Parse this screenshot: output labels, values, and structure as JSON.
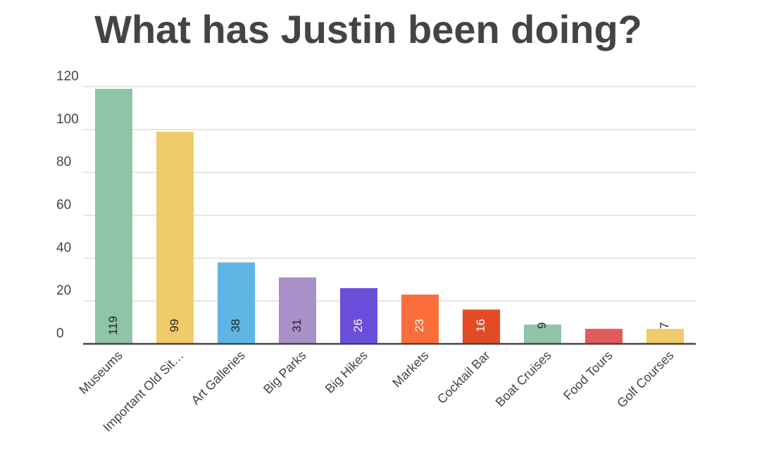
{
  "chart_data": {
    "type": "bar",
    "title": "What has Justin been doing?",
    "categories": [
      "Museums",
      "Important Old Sit…",
      "Art Galleries",
      "Big Parks",
      "Big Hikes",
      "Markets",
      "Cocktail Bar",
      "Boat Cruises",
      "Food Tours",
      "Golf Courses"
    ],
    "values": [
      119,
      99,
      38,
      31,
      26,
      23,
      16,
      9,
      7,
      7
    ],
    "colors": [
      "#8fc4a8",
      "#f0cb69",
      "#5fb6e4",
      "#a990c8",
      "#6a4fdb",
      "#fb6d3b",
      "#e24b26",
      "#8fc4a8",
      "#e15b5b",
      "#f0cb69"
    ],
    "ylim": [
      0,
      120
    ],
    "yticks": [
      0,
      20,
      40,
      60,
      80,
      100,
      120
    ],
    "grid": true
  }
}
